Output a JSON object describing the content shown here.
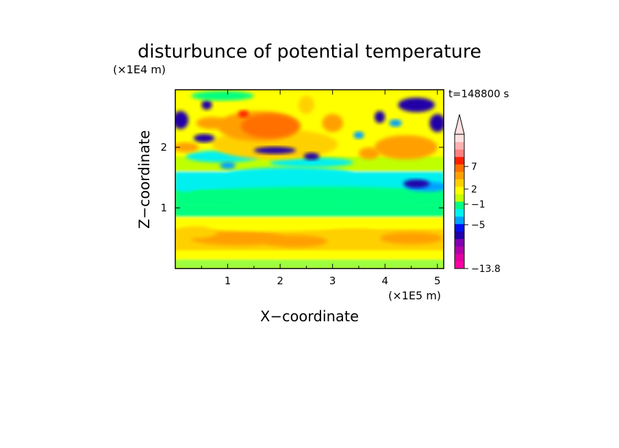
{
  "chart_data": {
    "type": "heatmap",
    "title": "disturbunce of potential temperature",
    "time_label": "t=148800 s",
    "xlabel": "X−coordinate",
    "ylabel": "Z−coordinate",
    "x_unit": "(×1E5 m)",
    "y_unit": "(×1E4 m)",
    "xlim": [
      0,
      5.12
    ],
    "ylim": [
      0,
      2.95
    ],
    "x_ticks": [
      1,
      2,
      3,
      4,
      5
    ],
    "y_ticks": [
      1,
      2
    ],
    "x_tick_labels": [
      "1",
      "2",
      "3",
      "4",
      "5"
    ],
    "y_tick_labels": [
      "1",
      "2"
    ],
    "colorbar": {
      "min": -13.8,
      "labels": [
        "7",
        "2",
        "−1",
        "−5",
        "−13.8"
      ],
      "colors": [
        "#ff00a0",
        "#e000a0",
        "#b000a8",
        "#8000b0",
        "#2000a8",
        "#0010f0",
        "#00a0ff",
        "#00f0f0",
        "#00ff80",
        "#c0ff00",
        "#ffff00",
        "#ffd000",
        "#ffa000",
        "#ff7000",
        "#ff2000",
        "#ff8080",
        "#ffb0b0",
        "#ffe0e0"
      ]
    },
    "regions": [
      {
        "x": [
          0,
          5.12
        ],
        "z": [
          0,
          0.15
        ],
        "value": 0,
        "desc": "near-surface mixed green/yellow"
      },
      {
        "x": [
          0,
          5.12
        ],
        "z": [
          0.15,
          0.85
        ],
        "value": 1.5,
        "desc": "yellow/orange band"
      },
      {
        "x": [
          0,
          5.12
        ],
        "z": [
          0.85,
          1.3
        ],
        "value": 0,
        "desc": "green band"
      },
      {
        "x": [
          0,
          5.12
        ],
        "z": [
          1.3,
          1.6
        ],
        "value": -1,
        "desc": "cyan band"
      },
      {
        "x": [
          0,
          5.12
        ],
        "z": [
          1.6,
          2.95
        ],
        "value": 1.5,
        "desc": "upper wave region"
      },
      {
        "x": [
          1.2,
          2.8
        ],
        "z": [
          2.1,
          2.65
        ],
        "value": 5,
        "desc": "orange maximum"
      },
      {
        "x": [
          1.2,
          1.4
        ],
        "z": [
          2.5,
          2.6
        ],
        "value": 7,
        "desc": "red core"
      },
      {
        "x": [
          1.7,
          2.4
        ],
        "z": [
          1.85,
          2.05
        ],
        "value": -5,
        "desc": "blue minimum"
      },
      {
        "x": [
          4.2,
          5.0
        ],
        "z": [
          2.5,
          2.8
        ],
        "value": -5,
        "desc": "blue minimum upper right"
      },
      {
        "x": [
          0,
          0.3
        ],
        "z": [
          2.3,
          2.6
        ],
        "value": -5,
        "desc": "blue minimum left edge"
      }
    ]
  }
}
